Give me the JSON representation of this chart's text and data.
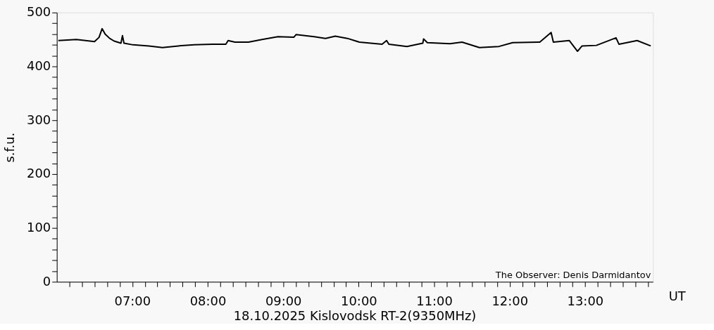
{
  "chart_data": {
    "type": "line",
    "title": "18.10.2025 Kislovodsk RT-2(9350MHz)",
    "xlabel": "UT",
    "ylabel": "s.f.u.",
    "annotations": [
      "The Observer: Denis Darmidantov"
    ],
    "xlim": [
      6,
      13.9
    ],
    "ylim": [
      0,
      500
    ],
    "xticks": [
      {
        "value": 6.1667,
        "label": null
      },
      {
        "value": 6.3333,
        "label": null
      },
      {
        "value": 6.5,
        "label": null
      },
      {
        "value": 6.6667,
        "label": null
      },
      {
        "value": 6.8333,
        "label": null
      },
      {
        "value": 7,
        "label": "07:00"
      },
      {
        "value": 7.1667,
        "label": null
      },
      {
        "value": 7.3333,
        "label": null
      },
      {
        "value": 7.5,
        "label": null
      },
      {
        "value": 7.6667,
        "label": null
      },
      {
        "value": 7.8333,
        "label": null
      },
      {
        "value": 8,
        "label": "08:00"
      },
      {
        "value": 8.1667,
        "label": null
      },
      {
        "value": 8.3333,
        "label": null
      },
      {
        "value": 8.5,
        "label": null
      },
      {
        "value": 8.6667,
        "label": null
      },
      {
        "value": 8.8333,
        "label": null
      },
      {
        "value": 9,
        "label": "09:00"
      },
      {
        "value": 9.1667,
        "label": null
      },
      {
        "value": 9.3333,
        "label": null
      },
      {
        "value": 9.5,
        "label": null
      },
      {
        "value": 9.6667,
        "label": null
      },
      {
        "value": 9.8333,
        "label": null
      },
      {
        "value": 10,
        "label": "10:00"
      },
      {
        "value": 10.1667,
        "label": null
      },
      {
        "value": 10.3333,
        "label": null
      },
      {
        "value": 10.5,
        "label": null
      },
      {
        "value": 10.6667,
        "label": null
      },
      {
        "value": 10.8333,
        "label": null
      },
      {
        "value": 11,
        "label": "11:00"
      },
      {
        "value": 11.1667,
        "label": null
      },
      {
        "value": 11.3333,
        "label": null
      },
      {
        "value": 11.5,
        "label": null
      },
      {
        "value": 11.6667,
        "label": null
      },
      {
        "value": 11.8333,
        "label": null
      },
      {
        "value": 12,
        "label": "12:00"
      },
      {
        "value": 12.1667,
        "label": null
      },
      {
        "value": 12.3333,
        "label": null
      },
      {
        "value": 12.5,
        "label": null
      },
      {
        "value": 12.6667,
        "label": null
      },
      {
        "value": 12.8333,
        "label": null
      },
      {
        "value": 13,
        "label": "13:00"
      },
      {
        "value": 13.1667,
        "label": null
      },
      {
        "value": 13.3333,
        "label": null
      },
      {
        "value": 13.5,
        "label": null
      },
      {
        "value": 13.6667,
        "label": null
      },
      {
        "value": 13.8333,
        "label": null
      }
    ],
    "yticks": [
      0,
      {
        "value": 20,
        "label": null
      },
      {
        "value": 40,
        "label": null
      },
      {
        "value": 60,
        "label": null
      },
      {
        "value": 80,
        "label": null
      },
      100,
      {
        "value": 120,
        "label": null
      },
      {
        "value": 140,
        "label": null
      },
      {
        "value": 160,
        "label": null
      },
      {
        "value": 180,
        "label": null
      },
      200,
      {
        "value": 220,
        "label": null
      },
      {
        "value": 240,
        "label": null
      },
      {
        "value": 260,
        "label": null
      },
      {
        "value": 280,
        "label": null
      },
      300,
      {
        "value": 320,
        "label": null
      },
      {
        "value": 340,
        "label": null
      },
      {
        "value": 360,
        "label": null
      },
      {
        "value": 380,
        "label": null
      },
      400,
      {
        "value": 420,
        "label": null
      },
      {
        "value": 440,
        "label": null
      },
      {
        "value": 460,
        "label": null
      },
      {
        "value": 480,
        "label": null
      },
      500
    ],
    "grid": false,
    "marker": "none",
    "line_style": "solid",
    "series": [
      {
        "color": "#000000",
        "x": [
          6.02,
          6.26,
          6.5,
          6.56,
          6.6,
          6.64,
          6.7,
          6.76,
          6.85,
          6.87,
          6.89,
          7.01,
          7.22,
          7.4,
          7.61,
          7.82,
          8.06,
          8.24,
          8.27,
          8.36,
          8.54,
          8.72,
          8.93,
          9.14,
          9.17,
          9.41,
          9.56,
          9.69,
          9.85,
          10.01,
          10.31,
          10.37,
          10.4,
          10.64,
          10.85,
          10.86,
          10.91,
          11.21,
          11.37,
          11.6,
          11.86,
          12.04,
          12.4,
          12.55,
          12.58,
          12.79,
          12.9,
          12.96,
          13.15,
          13.41,
          13.45,
          13.69,
          13.87
        ],
        "values": [
          448,
          450,
          446,
          454,
          470,
          460,
          452,
          447,
          443,
          457,
          443,
          440,
          438,
          435,
          438,
          440,
          441,
          441,
          448,
          445,
          445,
          450,
          455,
          454,
          459,
          455,
          452,
          456,
          452,
          445,
          441,
          448,
          441,
          437,
          443,
          451,
          444,
          442,
          445,
          435,
          437,
          444,
          445,
          463,
          445,
          448,
          428,
          438,
          439,
          453,
          441,
          448,
          438
        ]
      }
    ]
  }
}
